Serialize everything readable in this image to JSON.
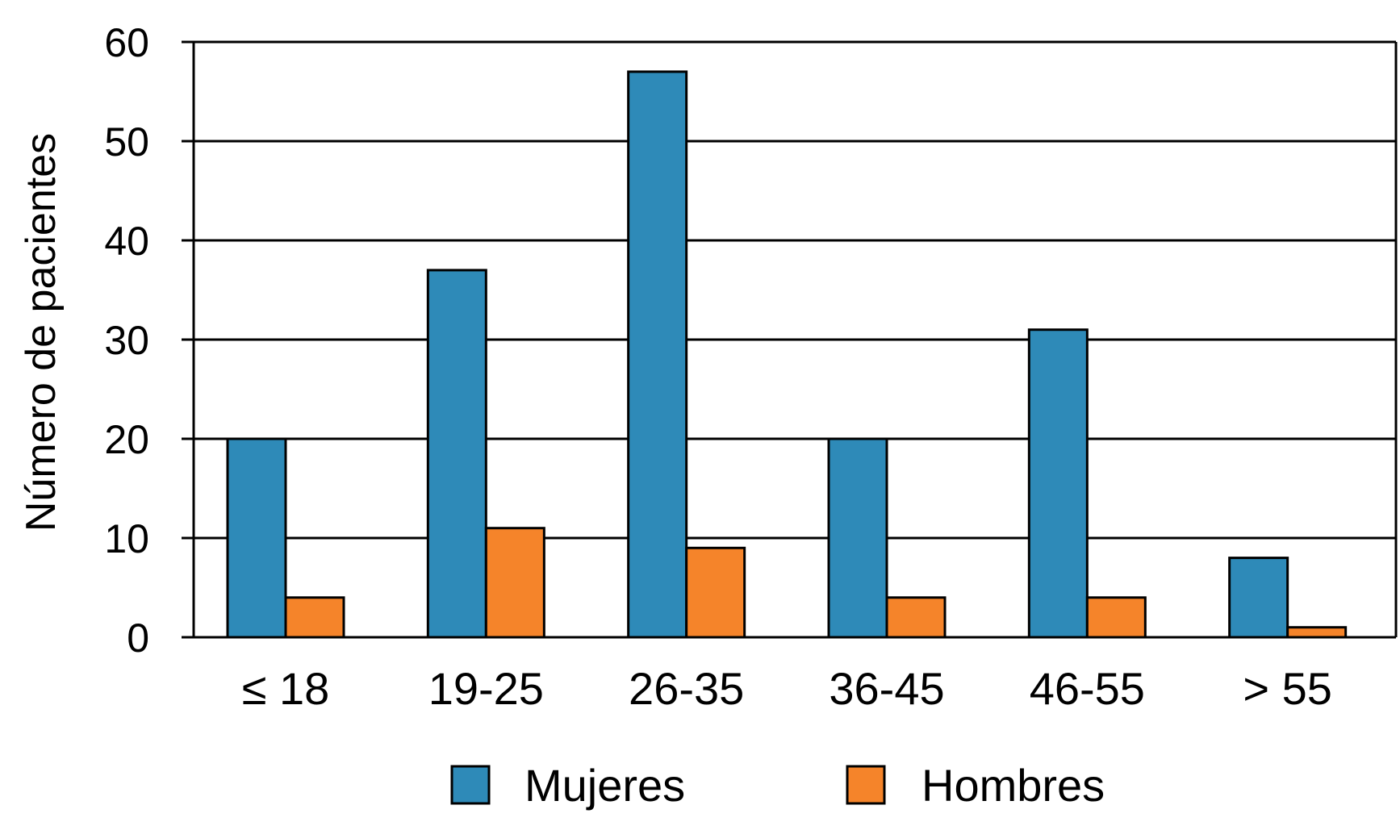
{
  "chart_data": {
    "type": "bar",
    "title": "",
    "xlabel": "",
    "ylabel": "Número de pacientes",
    "ylim": [
      0,
      60
    ],
    "yticks": [
      "0",
      "10",
      "20",
      "30",
      "40",
      "50",
      "60"
    ],
    "categories": [
      "≤ 18",
      "19-25",
      "26-35",
      "36-45",
      "46-55",
      "> 55"
    ],
    "series": [
      {
        "name": "Mujeres",
        "color": "#2e8ab8",
        "values": [
          20,
          37,
          57,
          20,
          31,
          8
        ]
      },
      {
        "name": "Hombres",
        "color": "#f5842a",
        "values": [
          4,
          11,
          9,
          4,
          4,
          1
        ]
      }
    ],
    "grid": true,
    "legend": "bottom"
  }
}
